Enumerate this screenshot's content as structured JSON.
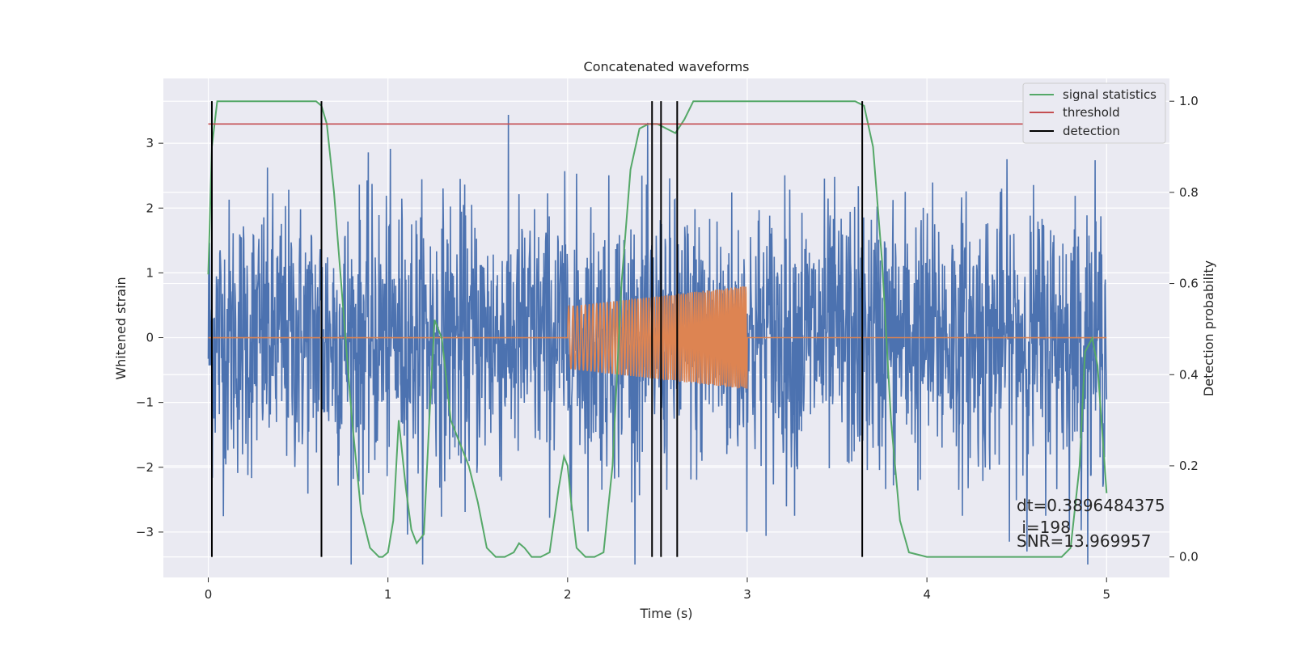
{
  "chart_data": {
    "type": "line",
    "title": "Concatenated waveforms",
    "xlabel": "Time (s)",
    "ylabel_left": "Whitened strain",
    "ylabel_right": "Detection probability",
    "xlim": [
      -0.25,
      5.35
    ],
    "ylim_left": [
      -3.7,
      4.0
    ],
    "ylim_right": [
      -0.045,
      1.05
    ],
    "x_ticks": [
      0,
      1,
      2,
      3,
      4,
      5
    ],
    "y_left_ticks": [
      -3,
      -2,
      -1,
      0,
      1,
      2,
      3
    ],
    "y_right_ticks": [
      0.0,
      0.2,
      0.4,
      0.6,
      0.8,
      1.0
    ],
    "x_tick_labels": [
      "0",
      "1",
      "2",
      "3",
      "4",
      "5"
    ],
    "y_left_tick_labels": [
      "−3",
      "−2",
      "−1",
      "0",
      "1",
      "2",
      "3"
    ],
    "y_right_tick_labels": [
      "0.0",
      "0.2",
      "0.4",
      "0.6",
      "0.8",
      "1.0"
    ],
    "grid": true,
    "legend_position": "top-right",
    "legend": [
      {
        "name": "signal statistics",
        "color": "#55a868"
      },
      {
        "name": "threshold",
        "color": "#c44e52"
      },
      {
        "name": "detection",
        "color": "#000000"
      }
    ],
    "series": [
      {
        "name": "strain",
        "color": "#4c72b0",
        "axis": "left",
        "description_range": [
          0,
          5
        ],
        "amplitude_envelope": 3.5
      },
      {
        "name": "waveform",
        "color": "#dd8452",
        "axis": "left",
        "x_range": [
          0,
          5
        ],
        "chirp_range": [
          2.0,
          3.0
        ],
        "chirp_amplitude": [
          0.48,
          0.8
        ]
      },
      {
        "name": "signal statistics",
        "color": "#55a868",
        "axis": "right",
        "x": [
          0.0,
          0.02,
          0.05,
          0.1,
          0.2,
          0.4,
          0.55,
          0.6,
          0.63,
          0.66,
          0.7,
          0.75,
          0.8,
          0.85,
          0.9,
          0.95,
          0.97,
          1.0,
          1.03,
          1.06,
          1.1,
          1.13,
          1.16,
          1.2,
          1.23,
          1.26,
          1.3,
          1.35,
          1.4,
          1.45,
          1.5,
          1.55,
          1.6,
          1.65,
          1.7,
          1.73,
          1.76,
          1.8,
          1.85,
          1.9,
          1.95,
          1.98,
          2.0,
          2.02,
          2.05,
          2.1,
          2.15,
          2.2,
          2.25,
          2.3,
          2.35,
          2.4,
          2.45,
          2.5,
          2.55,
          2.6,
          2.65,
          2.7,
          2.8,
          3.0,
          3.3,
          3.6,
          3.65,
          3.7,
          3.75,
          3.8,
          3.85,
          3.9,
          4.0,
          4.3,
          4.6,
          4.75,
          4.8,
          4.85,
          4.88,
          4.92,
          4.95,
          5.0
        ],
        "y": [
          0.62,
          0.9,
          1.0,
          1.0,
          1.0,
          1.0,
          1.0,
          1.0,
          0.99,
          0.95,
          0.8,
          0.55,
          0.3,
          0.1,
          0.02,
          0.0,
          0.0,
          0.01,
          0.08,
          0.3,
          0.15,
          0.06,
          0.03,
          0.05,
          0.3,
          0.52,
          0.48,
          0.3,
          0.25,
          0.2,
          0.12,
          0.02,
          0.0,
          0.0,
          0.01,
          0.03,
          0.02,
          0.0,
          0.0,
          0.01,
          0.15,
          0.22,
          0.2,
          0.12,
          0.02,
          0.0,
          0.0,
          0.01,
          0.2,
          0.6,
          0.85,
          0.94,
          0.95,
          0.95,
          0.94,
          0.93,
          0.96,
          1.0,
          1.0,
          1.0,
          1.0,
          1.0,
          0.99,
          0.9,
          0.65,
          0.3,
          0.08,
          0.01,
          0.0,
          0.0,
          0.0,
          0.0,
          0.02,
          0.2,
          0.45,
          0.48,
          0.42,
          0.14
        ]
      },
      {
        "name": "threshold",
        "color": "#c44e52",
        "axis": "right",
        "x": [
          0,
          5
        ],
        "y": [
          0.95,
          0.95
        ]
      },
      {
        "name": "detection",
        "color": "#000000",
        "axis": "right",
        "type": "vlines",
        "x": [
          0.02,
          0.63,
          2.47,
          2.52,
          2.61,
          3.64
        ],
        "y_range": [
          0.0,
          1.0
        ]
      }
    ],
    "annotations": [
      "dt=0.3896484375",
      " i=198",
      "SNR=13.969957"
    ]
  }
}
